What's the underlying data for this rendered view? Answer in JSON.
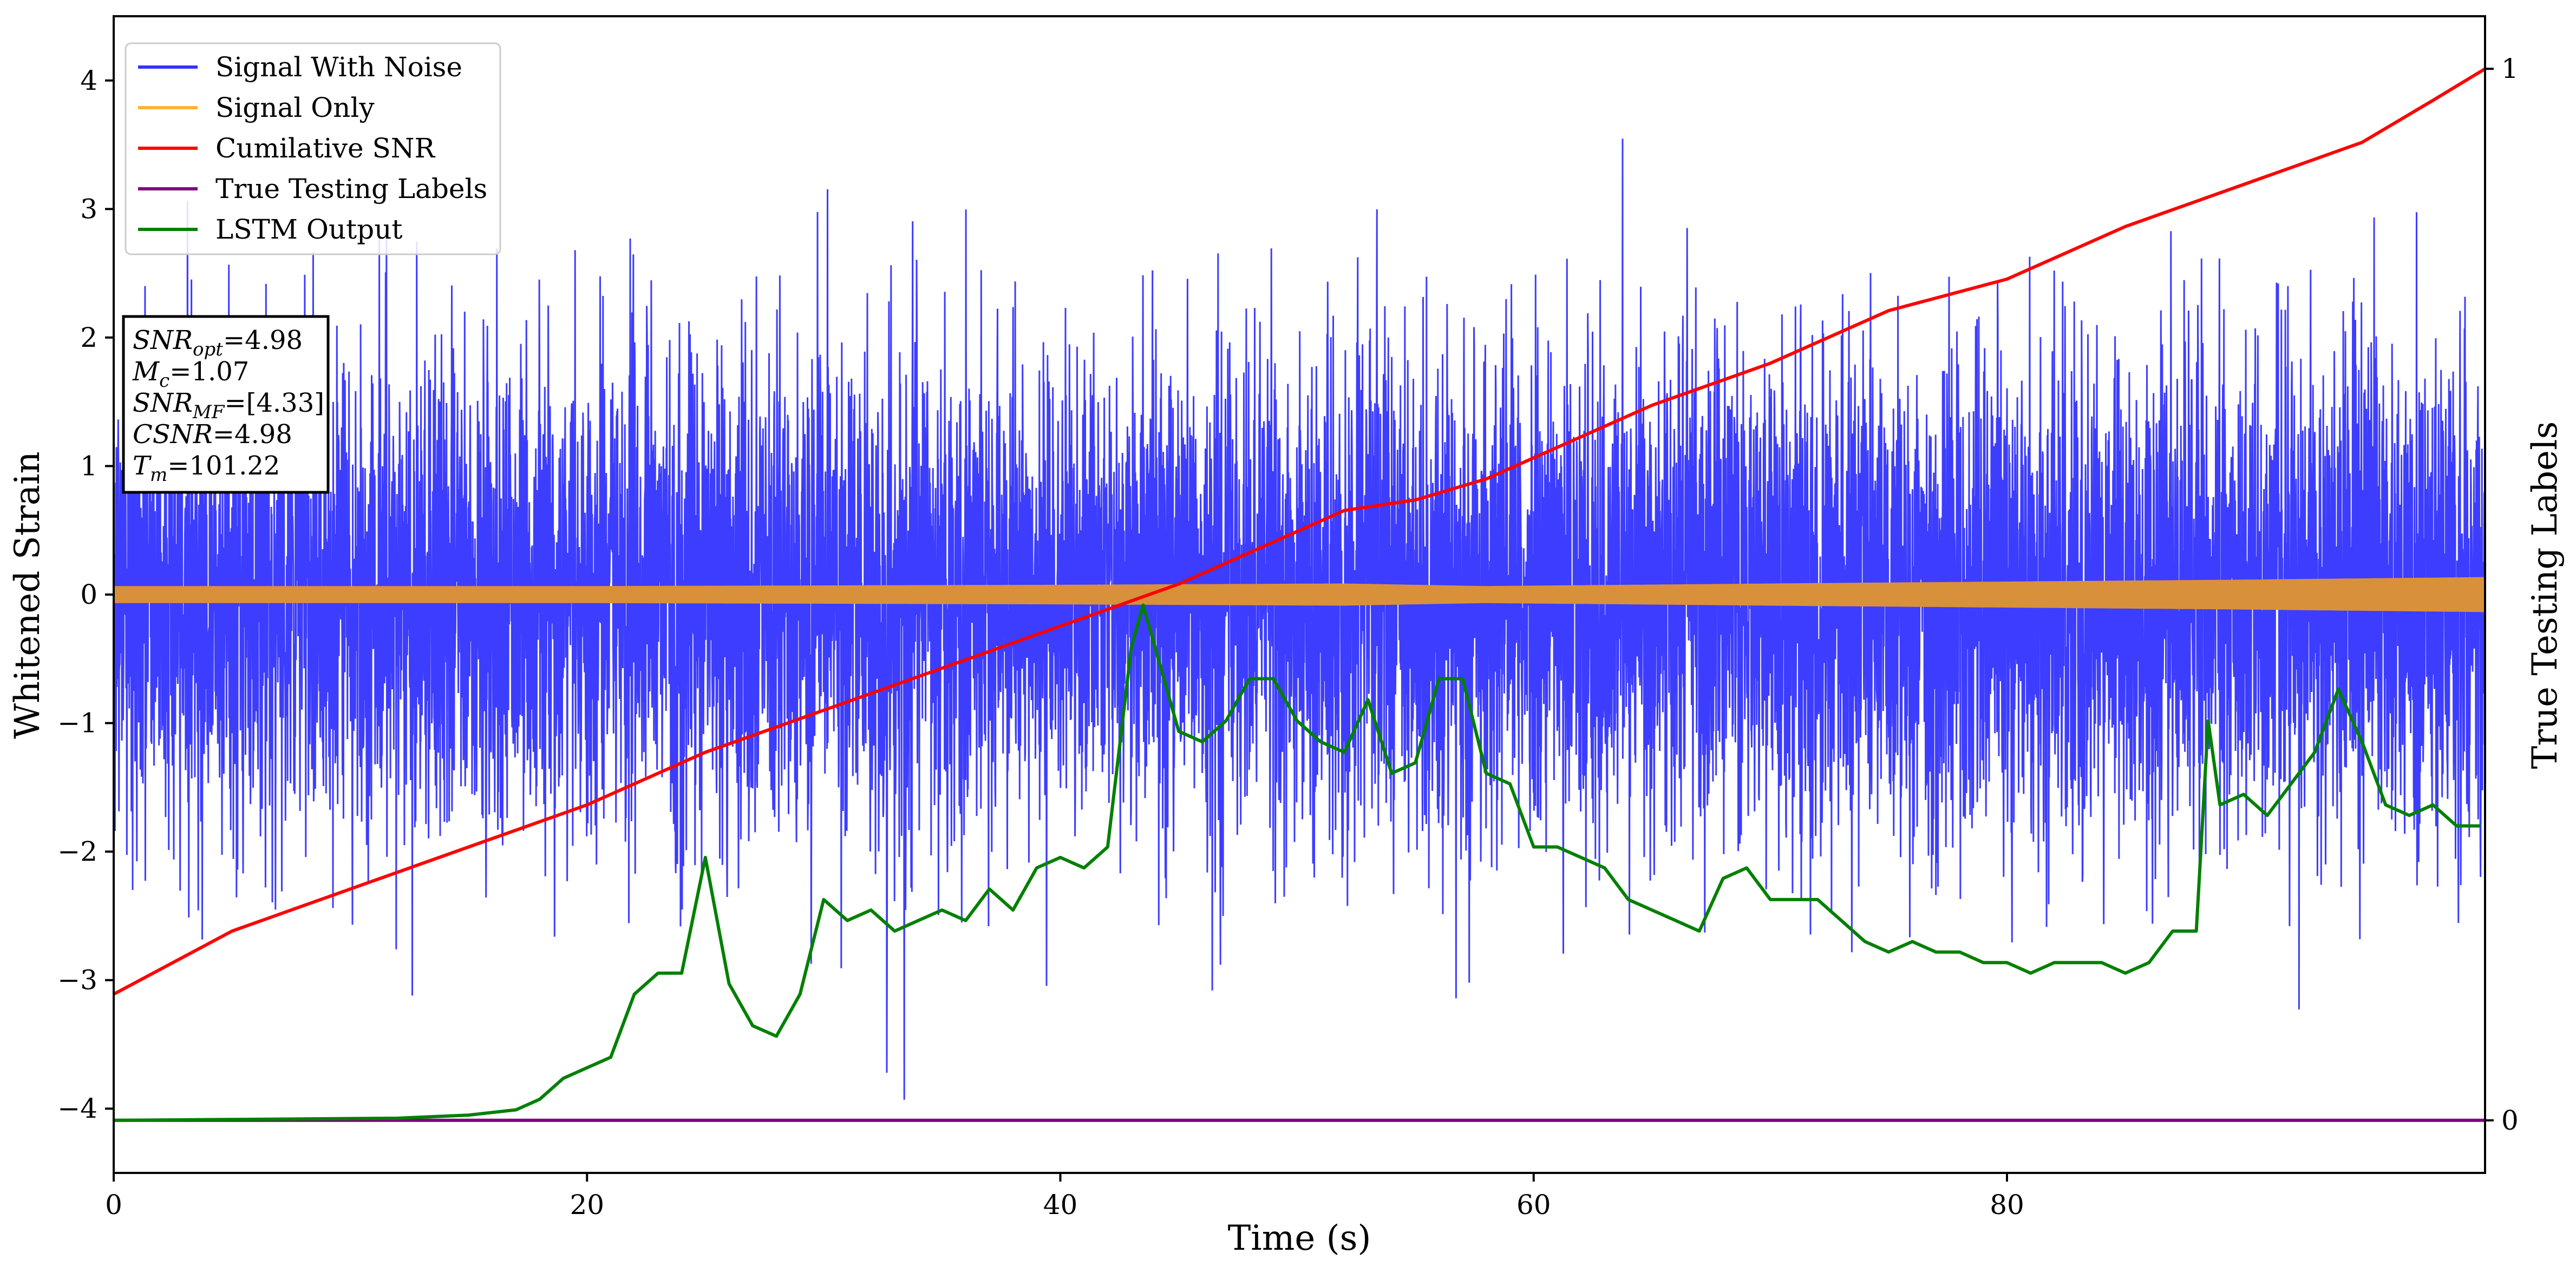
{
  "chart_data": {
    "type": "line",
    "xlabel": "Time (s)",
    "ylabel": "Whitened Strain",
    "ylabel_right": "True Testing Labels",
    "xlim": [
      0,
      100.2
    ],
    "ylim": [
      -4.5,
      4.5
    ],
    "ylim_right": [
      -0.05,
      1.05
    ],
    "x_ticks": [
      0,
      20,
      40,
      60,
      80
    ],
    "y_ticks": [
      -4,
      -3,
      -2,
      -1,
      0,
      1,
      2,
      3,
      4
    ],
    "y_ticks_right": [
      0,
      1
    ],
    "legend": {
      "placement": "top-left",
      "entries": [
        {
          "label": "Signal With Noise",
          "color": "#3333ff"
        },
        {
          "label": "Signal Only",
          "color": "#ffb13b"
        },
        {
          "label": "Cumilative SNR",
          "color": "#ff0000"
        },
        {
          "label": "True Testing Labels",
          "color": "#800080"
        },
        {
          "label": "LSTM Output",
          "color": "#008000"
        }
      ]
    },
    "annotation": {
      "lines": [
        {
          "name": "SNR",
          "sub": "opt",
          "value": "=4.98"
        },
        {
          "name": "M",
          "sub": "c",
          "value": "=1.07"
        },
        {
          "name": "SNR",
          "sub": "MF",
          "value": "=[4.33]"
        },
        {
          "name": "CSNR",
          "sub": "",
          "value": "=4.98"
        },
        {
          "name": "T",
          "sub": "m",
          "value": "=101.22"
        }
      ]
    },
    "series": [
      {
        "name": "Signal With Noise",
        "axis": "left",
        "color": "#3333ff",
        "description_envelope": {
          "typical_abs_max": 2.5,
          "peak_max": 4.05,
          "peak_min": -4.1,
          "x_range": [
            0,
            100.2
          ]
        }
      },
      {
        "name": "Signal Only",
        "axis": "left",
        "color": "#ffb13b",
        "envelope": {
          "x": [
            0,
            20,
            40,
            52,
            58,
            70,
            90,
            100.2
          ],
          "amp": [
            0.06,
            0.06,
            0.07,
            0.08,
            0.06,
            0.08,
            0.11,
            0.13
          ]
        }
      },
      {
        "name": "Cumilative SNR",
        "axis": "right",
        "color": "#ff0000",
        "x": [
          0,
          5,
          10,
          15,
          20,
          25,
          30,
          35,
          40,
          45,
          50,
          52,
          55,
          58,
          60,
          65,
          70,
          75,
          80,
          85,
          90,
          95,
          98,
          100.2
        ],
        "y": [
          0.12,
          0.18,
          0.22,
          0.26,
          0.3,
          0.35,
          0.39,
          0.43,
          0.47,
          0.51,
          0.56,
          0.58,
          0.59,
          0.61,
          0.63,
          0.68,
          0.72,
          0.77,
          0.8,
          0.85,
          0.89,
          0.93,
          0.97,
          1.0
        ]
      },
      {
        "name": "True Testing Labels",
        "axis": "right",
        "color": "#800080",
        "x": [
          0,
          100.2
        ],
        "y": [
          0,
          0
        ]
      },
      {
        "name": "LSTM Output",
        "axis": "right",
        "color": "#008000",
        "x": [
          0,
          12,
          15,
          17,
          18,
          19,
          20,
          21,
          22,
          23,
          24,
          25,
          26,
          27,
          28,
          29,
          30,
          31,
          32,
          33,
          34,
          35,
          36,
          37,
          38,
          39,
          40,
          41,
          42,
          43,
          43.5,
          44,
          45,
          46,
          47,
          48,
          49,
          50,
          51,
          52,
          53,
          54,
          55,
          56,
          57,
          58,
          59,
          60,
          61,
          62,
          63,
          64,
          65,
          66,
          67,
          68,
          69,
          70,
          71,
          72,
          73,
          74,
          75,
          76,
          77,
          78,
          79,
          80,
          81,
          82,
          83,
          84,
          85,
          86,
          87,
          88,
          88.5,
          89,
          90,
          91,
          92,
          93,
          94,
          95,
          96,
          97,
          98,
          99,
          100
        ],
        "y": [
          0.0,
          0.002,
          0.005,
          0.01,
          0.02,
          0.04,
          0.05,
          0.06,
          0.12,
          0.14,
          0.14,
          0.25,
          0.13,
          0.09,
          0.08,
          0.12,
          0.21,
          0.19,
          0.2,
          0.18,
          0.19,
          0.2,
          0.19,
          0.22,
          0.2,
          0.24,
          0.25,
          0.24,
          0.26,
          0.45,
          0.49,
          0.45,
          0.37,
          0.36,
          0.38,
          0.42,
          0.42,
          0.38,
          0.36,
          0.35,
          0.4,
          0.33,
          0.34,
          0.42,
          0.42,
          0.33,
          0.32,
          0.26,
          0.26,
          0.25,
          0.24,
          0.21,
          0.2,
          0.19,
          0.18,
          0.23,
          0.24,
          0.21,
          0.21,
          0.21,
          0.19,
          0.17,
          0.16,
          0.17,
          0.16,
          0.16,
          0.15,
          0.15,
          0.14,
          0.15,
          0.15,
          0.15,
          0.14,
          0.15,
          0.18,
          0.18,
          0.38,
          0.3,
          0.31,
          0.29,
          0.32,
          0.35,
          0.41,
          0.36,
          0.3,
          0.29,
          0.3,
          0.28,
          0.28
        ]
      }
    ]
  }
}
